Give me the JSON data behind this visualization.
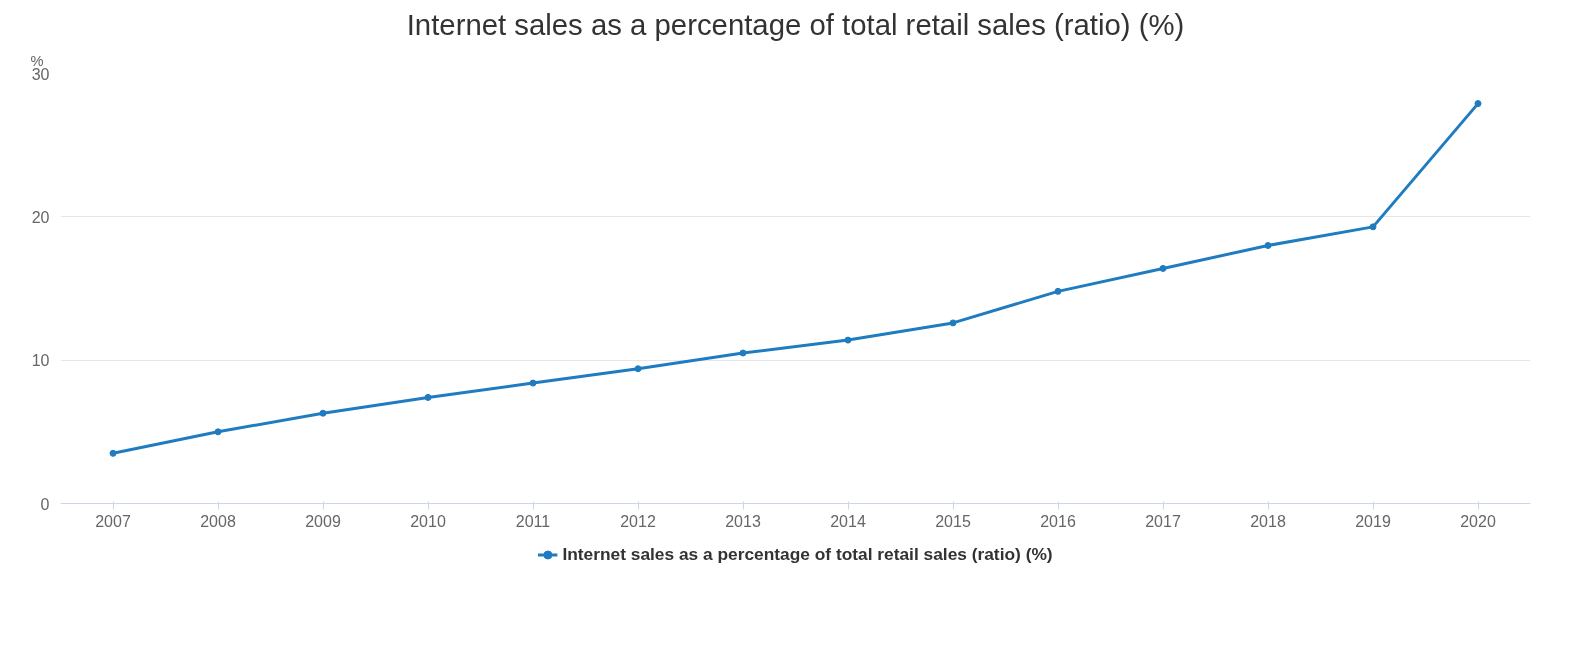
{
  "chart_data": {
    "type": "line",
    "title": "Internet sales as a percentage of total retail sales (ratio) (%)",
    "ylabel": "%",
    "categories": [
      "2007",
      "2008",
      "2009",
      "2010",
      "2011",
      "2012",
      "2013",
      "2014",
      "2015",
      "2016",
      "2017",
      "2018",
      "2019",
      "2020"
    ],
    "series": [
      {
        "name": "Internet sales as a percentage of total retail sales (ratio) (%)",
        "color": "#1f7cc1",
        "values": [
          3.5,
          5.0,
          6.3,
          7.4,
          8.4,
          9.4,
          10.5,
          11.4,
          12.6,
          14.8,
          16.4,
          18.0,
          19.3,
          27.9
        ]
      }
    ],
    "ylim": [
      0,
      30
    ],
    "yticks": [
      0,
      10,
      20,
      30
    ],
    "grid": "y",
    "legend": "bottom",
    "marker": "circle",
    "line_style": "solid"
  }
}
